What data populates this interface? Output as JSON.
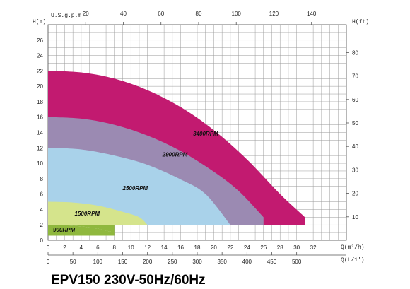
{
  "chart_data": {
    "type": "area",
    "title": "EPV150 230V-50Hz/60Hz",
    "left_axis_label": "H(m)",
    "right_axis_label": "H(ft)",
    "top_axis_label": "U.S.g.p.m",
    "bottom_axis1_label": "Q(m³/h)",
    "bottom_axis2_label": "Q(L/1′)",
    "h_m_ticks": [
      "0",
      "2",
      "4",
      "6",
      "8",
      "10",
      "12",
      "14",
      "16",
      "18",
      "20",
      "22",
      "24",
      "26"
    ],
    "h_ft_ticks": [
      "10",
      "20",
      "30",
      "40",
      "50",
      "60",
      "70",
      "80"
    ],
    "usgpm_ticks": [
      "20",
      "40",
      "60",
      "80",
      "100",
      "120",
      "140"
    ],
    "q_m3h_ticks": [
      "0",
      "2",
      "4",
      "6",
      "8",
      "10",
      "12",
      "14",
      "16",
      "18",
      "20",
      "22",
      "24",
      "26",
      "28",
      "30",
      "32"
    ],
    "q_lmin_ticks": [
      "0",
      "50",
      "100",
      "150",
      "200",
      "250",
      "300",
      "350",
      "400",
      "450",
      "500"
    ],
    "xlim_m3h": [
      0,
      36
    ],
    "ylim_m": [
      0,
      28
    ],
    "grid": true,
    "series": [
      {
        "name": "3400RPM",
        "color": "#c21a70",
        "points": [
          [
            0,
            22
          ],
          [
            4,
            21.8
          ],
          [
            8,
            21
          ],
          [
            12,
            19.5
          ],
          [
            16,
            17.3
          ],
          [
            20,
            14.3
          ],
          [
            24,
            10.5
          ],
          [
            28,
            6
          ],
          [
            31,
            3
          ]
        ]
      },
      {
        "name": "2900RPM",
        "color": "#9b8ab2",
        "points": [
          [
            0,
            16
          ],
          [
            4,
            15.8
          ],
          [
            8,
            15
          ],
          [
            12,
            13.6
          ],
          [
            16,
            11.6
          ],
          [
            20,
            8.9
          ],
          [
            23,
            6.4
          ],
          [
            26,
            3
          ]
        ]
      },
      {
        "name": "2500RPM",
        "color": "#a9d2ea",
        "points": [
          [
            0,
            12
          ],
          [
            4,
            11.8
          ],
          [
            8,
            11
          ],
          [
            12,
            9.8
          ],
          [
            16,
            7.9
          ],
          [
            19,
            6
          ],
          [
            22,
            2
          ]
        ]
      },
      {
        "name": "1500RPM",
        "color": "#d5e48c",
        "points": [
          [
            0,
            5
          ],
          [
            3,
            4.9
          ],
          [
            6,
            4.5
          ],
          [
            9,
            3.7
          ],
          [
            11,
            3
          ],
          [
            12,
            2
          ]
        ]
      },
      {
        "name": "900RPM",
        "color": "#8fb83e",
        "points": [
          [
            0,
            2
          ],
          [
            2,
            1.95
          ],
          [
            4,
            1.8
          ],
          [
            6,
            1.5
          ],
          [
            7,
            1.25
          ],
          [
            8,
            1
          ]
        ]
      }
    ],
    "series_label_pos": {
      "3400RPM": [
        17.5,
        13.6
      ],
      "2900RPM": [
        13.8,
        10.9
      ],
      "2500RPM": [
        9,
        6.5
      ],
      "1500RPM": [
        3.2,
        3.2
      ],
      "900RPM": [
        0.6,
        1.1
      ]
    },
    "floor_m": 2
  }
}
